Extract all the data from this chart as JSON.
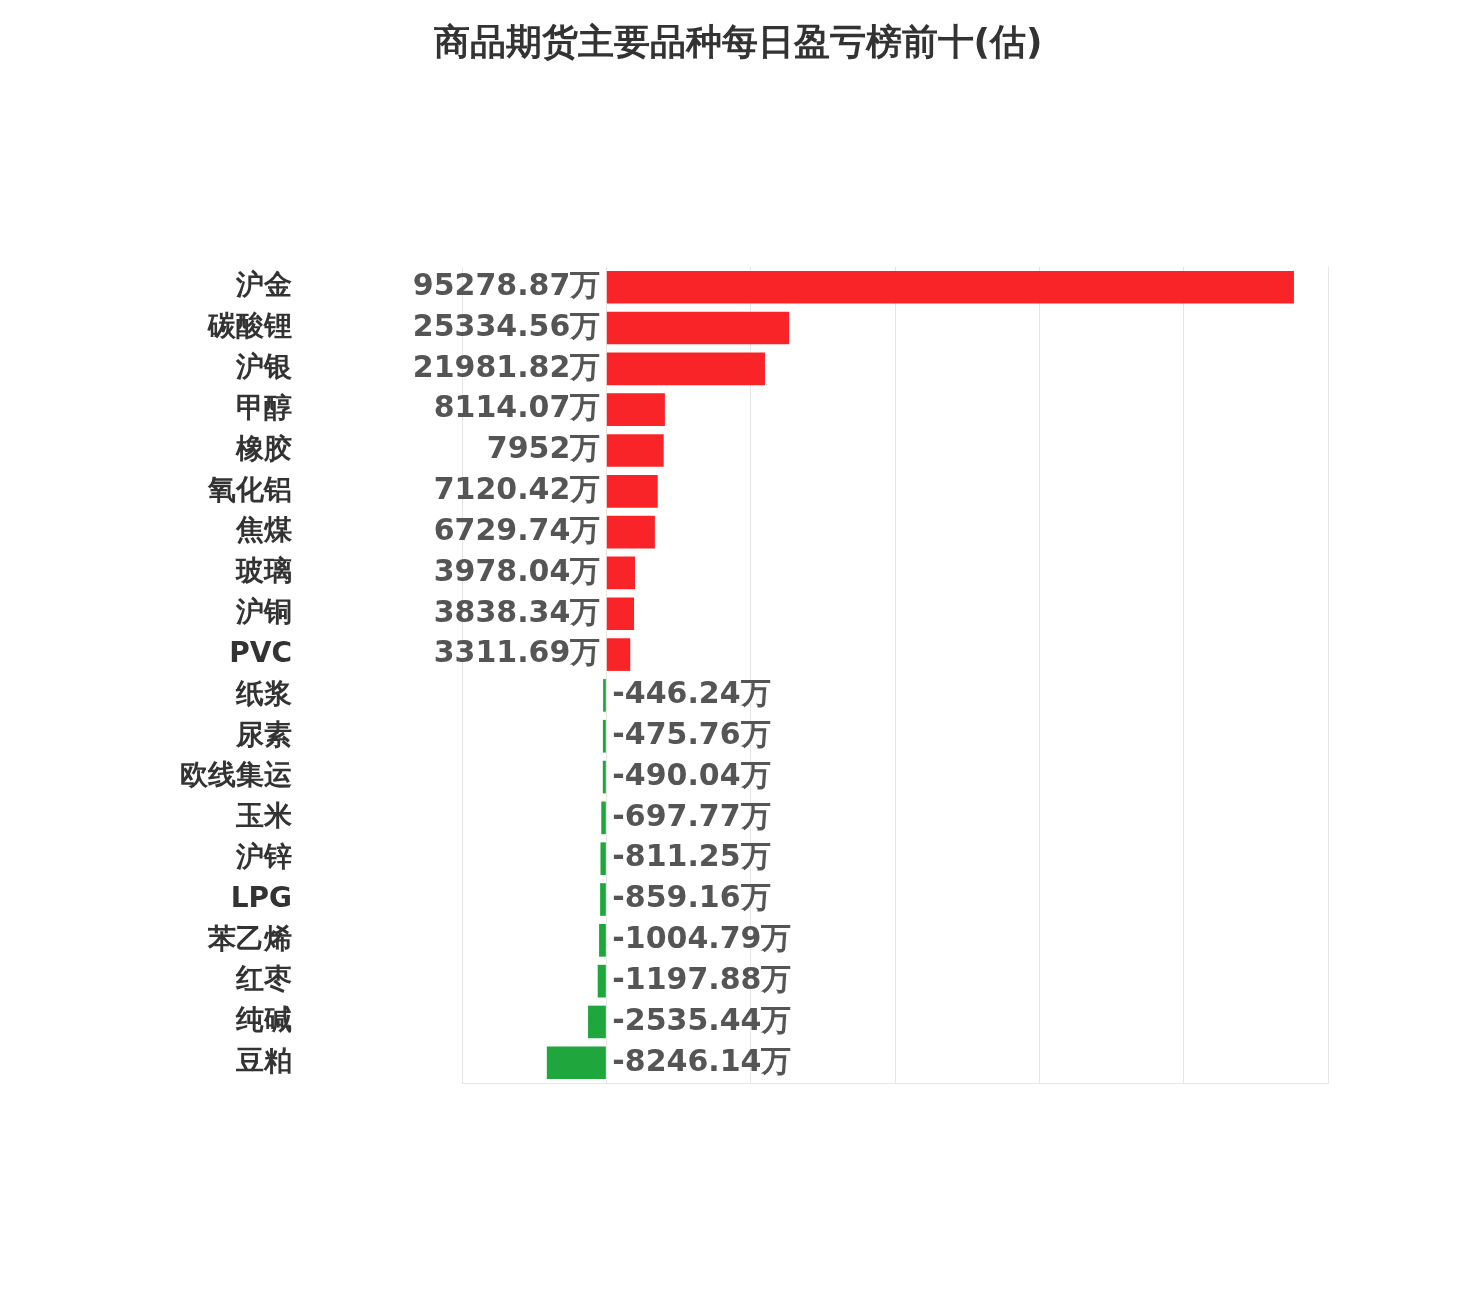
{
  "chart_data": {
    "type": "bar",
    "orientation": "horizontal",
    "title": "商品期货主要品种每日盈亏榜前十(估)",
    "categories": [
      "沪金",
      "碳酸锂",
      "沪银",
      "甲醇",
      "橡胶",
      "氧化铝",
      "焦煤",
      "玻璃",
      "沪铜",
      "PVC",
      "纸浆",
      "尿素",
      "欧线集运",
      "玉米",
      "沪锌",
      "LPG",
      "苯乙烯",
      "红枣",
      "纯碱",
      "豆粕"
    ],
    "values": [
      95278.87,
      25334.56,
      21981.82,
      8114.07,
      7952,
      7120.42,
      6729.74,
      3978.04,
      3838.34,
      3311.69,
      -446.24,
      -475.76,
      -490.04,
      -697.77,
      -811.25,
      -859.16,
      -1004.79,
      -1197.88,
      -2535.44,
      -8246.14
    ],
    "colors": [
      "#f92427",
      "#f92427",
      "#f92427",
      "#f92427",
      "#f92427",
      "#f92427",
      "#f92427",
      "#f92427",
      "#f92427",
      "#f92427",
      "#1fa63c",
      "#1fa63c",
      "#1fa63c",
      "#1fa63c",
      "#1fa63c",
      "#1fa63c",
      "#1fa63c",
      "#1fa63c",
      "#1fa63c",
      "#1fa63c"
    ],
    "value_labels": [
      "95278.87万",
      "25334.56万",
      "21981.82万",
      "8114.07万",
      "7952万",
      "7120.42万",
      "6729.74万",
      "3978.04万",
      "3838.34万",
      "3311.69万",
      "-446.24万",
      "-475.76万",
      "-490.04万",
      "-697.77万",
      "-811.25万",
      "-859.16万",
      "-1004.79万",
      "-1197.88万",
      "-2535.44万",
      "-8246.14万"
    ],
    "xlim": [
      -20000,
      100000
    ],
    "xticks": [
      {
        "value": -20000,
        "label": null
      },
      {
        "value": 0,
        "label": null
      },
      {
        "value": 20000,
        "label": null
      },
      {
        "value": 40000,
        "label": null
      },
      {
        "value": 60000,
        "label": null
      },
      {
        "value": 80000,
        "label": null
      },
      {
        "value": 100000,
        "label": null
      }
    ],
    "grid": "x",
    "tick_labels": "y",
    "legend": false
  }
}
